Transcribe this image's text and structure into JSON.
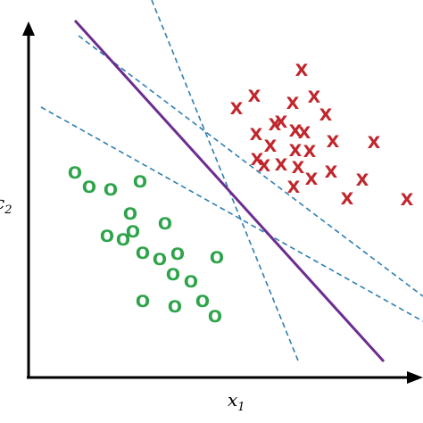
{
  "diagram": {
    "x_axis_label": "x",
    "x_axis_subscript": "1",
    "y_axis_label_visible": "c",
    "y_axis_subscript": "2",
    "class_a_marker": "X",
    "class_b_marker": "O",
    "colors": {
      "class_a": "#c0262c",
      "class_b": "#2ea44a",
      "solid_boundary": "#6b2d8f",
      "dashed_boundaries": "#2f7fb0",
      "axes": "#000000"
    }
  }
}
